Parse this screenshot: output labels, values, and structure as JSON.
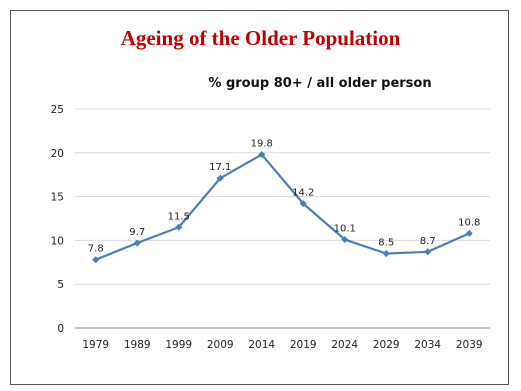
{
  "slide": {
    "title": "Ageing of the Older Population",
    "title_color": "#c00000"
  },
  "chart_data": {
    "type": "line",
    "title": "% group 80+ / all older person",
    "xlabel": "",
    "ylabel": "",
    "categories": [
      "1979",
      "1989",
      "1999",
      "2009",
      "2014",
      "2019",
      "2024",
      "2029",
      "2034",
      "2039"
    ],
    "series": [
      {
        "values": [
          7.8,
          9.7,
          11.5,
          17.1,
          19.8,
          14.2,
          10.1,
          8.5,
          8.7,
          10.8
        ],
        "labels": [
          "7.8",
          "9.7",
          "11.5",
          "17.1",
          "19.8",
          "14.2",
          "10.1",
          "8.5",
          "8.7",
          "10.8"
        ],
        "color": "#4a7ebb"
      }
    ],
    "ylim": [
      0,
      25
    ],
    "yticks": [
      "0",
      "5",
      "10",
      "15",
      "20",
      "25"
    ],
    "grid": true,
    "legend": "none"
  }
}
